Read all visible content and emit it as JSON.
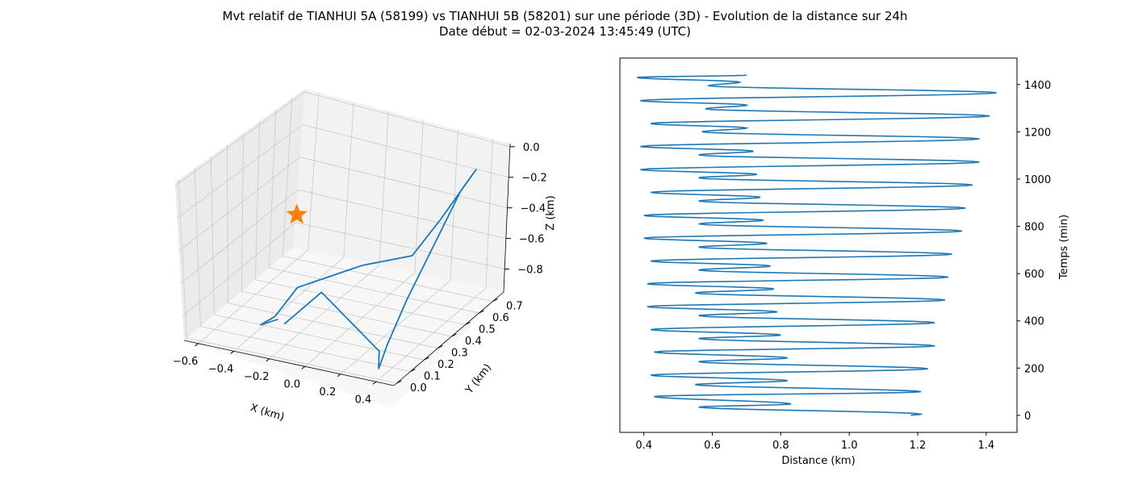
{
  "title_line1": "Mvt relatif de TIANHUI 5A (58199) vs TIANHUI 5B (58201) sur une période (3D) - Evolution de la distance sur 24h",
  "title_line2": "Date début = 02-03-2024 13:45:49 (UTC)",
  "colors": {
    "series": "#1f77b4",
    "marker": "#ff7f0e",
    "pane_side": "#ebebeb",
    "pane_back": "#f2f2f2",
    "pane_floor": "#f7f7f7",
    "grid": "#c8c8c8"
  },
  "chart_data": [
    {
      "type": "line3d",
      "xlabel": "X (km)",
      "ylabel": "Y (km)",
      "zlabel": "Z (km)",
      "x_ticks": [
        "−0.6",
        "−0.4",
        "−0.2",
        "0.0",
        "0.2",
        "0.4"
      ],
      "y_ticks": [
        "0.0",
        "0.1",
        "0.2",
        "0.3",
        "0.4",
        "0.5",
        "0.6",
        "0.7"
      ],
      "z_ticks": [
        "0.0",
        "−0.2",
        "−0.4",
        "−0.6",
        "−0.8"
      ],
      "xlim": [
        -0.68,
        0.5
      ],
      "ylim": [
        -0.02,
        0.78
      ],
      "zlim": [
        -0.95,
        0.02
      ],
      "marker": {
        "symbol": "star",
        "x": 0,
        "y": 0,
        "z": 0
      },
      "trajectory": {
        "x": [
          -0.22,
          -0.34,
          -0.32,
          -0.27,
          0.0,
          0.2,
          0.31,
          0.42,
          0.46,
          0.35,
          0.36,
          0.37,
          0.33,
          -0.05,
          -0.22
        ],
        "y": [
          0.08,
          0.1,
          0.18,
          0.28,
          0.4,
          0.5,
          0.56,
          0.66,
          0.52,
          0.28,
          0.12,
          0.04,
          0.1,
          0.18,
          0.12
        ],
        "z": [
          -0.78,
          -0.86,
          -0.86,
          -0.74,
          -0.62,
          -0.58,
          -0.36,
          -0.08,
          -0.1,
          -0.66,
          -0.83,
          -0.92,
          -0.86,
          -0.64,
          -0.84
        ]
      }
    },
    {
      "type": "line",
      "xlabel": "Distance (km)",
      "ylabel": "Temps (min)",
      "xlim": [
        0.33,
        1.49
      ],
      "ylim": [
        -72,
        1512
      ],
      "x_ticks": [
        0.4,
        0.6,
        0.8,
        1.0,
        1.2,
        1.4
      ],
      "y_ticks": [
        0,
        200,
        400,
        600,
        800,
        1000,
        1200,
        1400
      ],
      "extrema": [
        {
          "t": 0,
          "d": 1.18
        },
        {
          "t": 5,
          "d": 1.21
        },
        {
          "t": 35,
          "d": 0.56
        },
        {
          "t": 48,
          "d": 0.83
        },
        {
          "t": 80,
          "d": 0.43
        },
        {
          "t": 100,
          "d": 1.21
        },
        {
          "t": 130,
          "d": 0.55
        },
        {
          "t": 147,
          "d": 0.82
        },
        {
          "t": 170,
          "d": 0.42
        },
        {
          "t": 197,
          "d": 1.23
        },
        {
          "t": 227,
          "d": 0.56
        },
        {
          "t": 243,
          "d": 0.82
        },
        {
          "t": 268,
          "d": 0.43
        },
        {
          "t": 294,
          "d": 1.25
        },
        {
          "t": 325,
          "d": 0.56
        },
        {
          "t": 340,
          "d": 0.8
        },
        {
          "t": 363,
          "d": 0.42
        },
        {
          "t": 392,
          "d": 1.25
        },
        {
          "t": 422,
          "d": 0.56
        },
        {
          "t": 438,
          "d": 0.79
        },
        {
          "t": 460,
          "d": 0.41
        },
        {
          "t": 488,
          "d": 1.28
        },
        {
          "t": 518,
          "d": 0.55
        },
        {
          "t": 535,
          "d": 0.78
        },
        {
          "t": 557,
          "d": 0.41
        },
        {
          "t": 585,
          "d": 1.29
        },
        {
          "t": 615,
          "d": 0.56
        },
        {
          "t": 632,
          "d": 0.77
        },
        {
          "t": 653,
          "d": 0.42
        },
        {
          "t": 682,
          "d": 1.3
        },
        {
          "t": 712,
          "d": 0.56
        },
        {
          "t": 728,
          "d": 0.76
        },
        {
          "t": 750,
          "d": 0.4
        },
        {
          "t": 780,
          "d": 1.33
        },
        {
          "t": 810,
          "d": 0.56
        },
        {
          "t": 826,
          "d": 0.75
        },
        {
          "t": 846,
          "d": 0.4
        },
        {
          "t": 877,
          "d": 1.34
        },
        {
          "t": 907,
          "d": 0.56
        },
        {
          "t": 923,
          "d": 0.74
        },
        {
          "t": 944,
          "d": 0.42
        },
        {
          "t": 975,
          "d": 1.36
        },
        {
          "t": 1005,
          "d": 0.56
        },
        {
          "t": 1020,
          "d": 0.73
        },
        {
          "t": 1040,
          "d": 0.39
        },
        {
          "t": 1072,
          "d": 1.38
        },
        {
          "t": 1102,
          "d": 0.56
        },
        {
          "t": 1118,
          "d": 0.72
        },
        {
          "t": 1138,
          "d": 0.39
        },
        {
          "t": 1170,
          "d": 1.38
        },
        {
          "t": 1200,
          "d": 0.57
        },
        {
          "t": 1216,
          "d": 0.7
        },
        {
          "t": 1235,
          "d": 0.42
        },
        {
          "t": 1267,
          "d": 1.41
        },
        {
          "t": 1297,
          "d": 0.58
        },
        {
          "t": 1313,
          "d": 0.7
        },
        {
          "t": 1332,
          "d": 0.39
        },
        {
          "t": 1365,
          "d": 1.43
        },
        {
          "t": 1395,
          "d": 0.59
        },
        {
          "t": 1410,
          "d": 0.68
        },
        {
          "t": 1430,
          "d": 0.38
        },
        {
          "t": 1440,
          "d": 0.7
        }
      ]
    }
  ]
}
